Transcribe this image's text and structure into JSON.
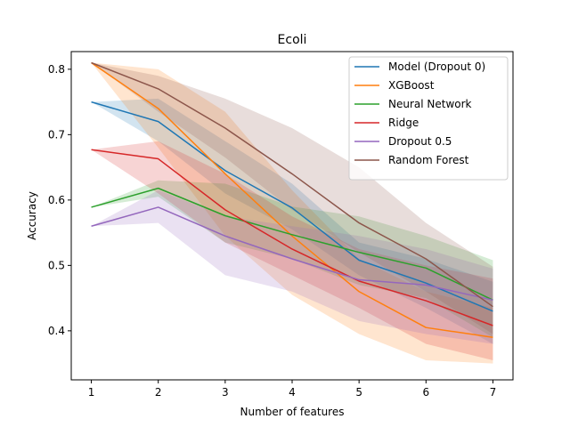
{
  "chart_data": {
    "type": "line",
    "title": "Ecoli",
    "xlabel": "Number of features",
    "ylabel": "Accuracy",
    "x": [
      1,
      2,
      3,
      4,
      5,
      6,
      7
    ],
    "x_ticks": [
      "1",
      "2",
      "3",
      "4",
      "5",
      "6",
      "7"
    ],
    "y_ticks": [
      "0.4",
      "0.5",
      "0.6",
      "0.7",
      "0.8"
    ],
    "y_tick_values": [
      0.4,
      0.5,
      0.6,
      0.7,
      0.8
    ],
    "xlim": [
      0.7,
      7.3
    ],
    "ylim": [
      0.325,
      0.827
    ],
    "legend_position": "top-right",
    "grid": false,
    "series": [
      {
        "name": "Model (Dropout 0)",
        "color": "#1f77b4",
        "values": [
          0.75,
          0.72,
          0.645,
          0.588,
          0.508,
          0.473,
          0.43
        ],
        "lower": [
          0.75,
          0.69,
          0.61,
          0.555,
          0.485,
          0.435,
          0.38
        ],
        "upper": [
          0.75,
          0.755,
          0.69,
          0.625,
          0.535,
          0.51,
          0.475
        ]
      },
      {
        "name": "XGBoost",
        "color": "#ff7f0e",
        "values": [
          0.81,
          0.74,
          0.64,
          0.545,
          0.46,
          0.405,
          0.39
        ],
        "lower": [
          0.81,
          0.68,
          0.545,
          0.455,
          0.395,
          0.355,
          0.35
        ],
        "upper": [
          0.81,
          0.8,
          0.735,
          0.615,
          0.51,
          0.46,
          0.435
        ]
      },
      {
        "name": "Neural Network",
        "color": "#2ca02c",
        "values": [
          0.589,
          0.618,
          0.576,
          0.547,
          0.52,
          0.496,
          0.447
        ],
        "lower": [
          0.589,
          0.605,
          0.535,
          0.51,
          0.47,
          0.45,
          0.39
        ],
        "upper": [
          0.589,
          0.63,
          0.625,
          0.59,
          0.575,
          0.545,
          0.508
        ]
      },
      {
        "name": "Ridge",
        "color": "#d62728",
        "values": [
          0.677,
          0.663,
          0.585,
          0.525,
          0.476,
          0.446,
          0.408
        ],
        "lower": [
          0.677,
          0.61,
          0.535,
          0.485,
          0.435,
          0.38,
          0.355
        ],
        "upper": [
          0.677,
          0.69,
          0.64,
          0.575,
          0.525,
          0.5,
          0.48
        ]
      },
      {
        "name": "Dropout 0.5",
        "color": "#9467bd",
        "values": [
          0.56,
          0.589,
          0.545,
          0.51,
          0.478,
          0.47,
          0.447
        ],
        "lower": [
          0.56,
          0.565,
          0.485,
          0.46,
          0.415,
          0.395,
          0.38
        ],
        "upper": [
          0.56,
          0.615,
          0.575,
          0.56,
          0.545,
          0.525,
          0.495
        ]
      },
      {
        "name": "Random Forest",
        "color": "#8c564b",
        "values": [
          0.81,
          0.77,
          0.71,
          0.64,
          0.565,
          0.51,
          0.437
        ],
        "lower": [
          0.81,
          0.735,
          0.665,
          0.585,
          0.52,
          0.46,
          0.395
        ],
        "upper": [
          0.81,
          0.79,
          0.755,
          0.71,
          0.65,
          0.565,
          0.498
        ]
      }
    ]
  }
}
